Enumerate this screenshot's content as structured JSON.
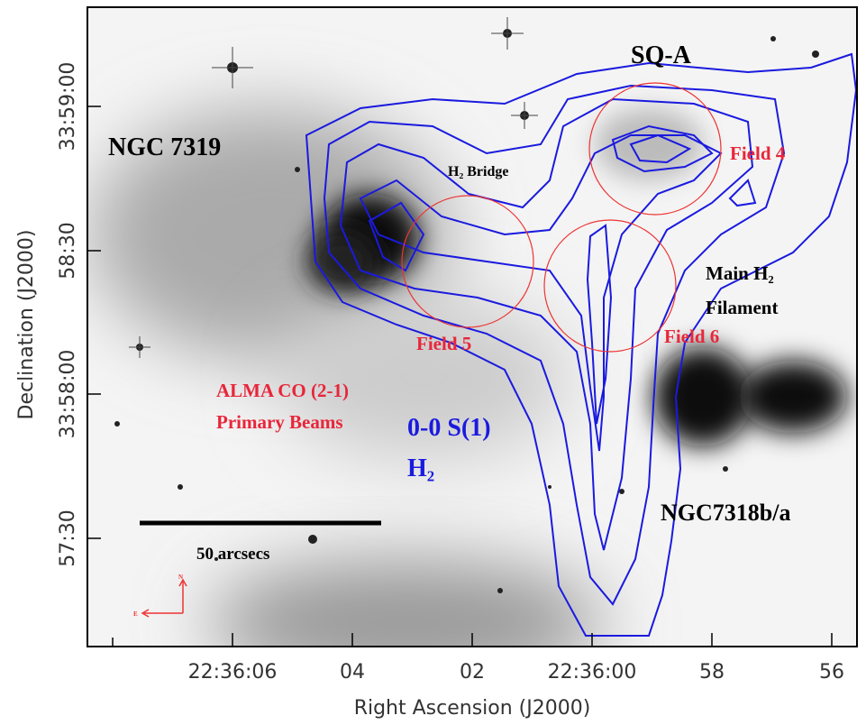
{
  "axes": {
    "x_label": "Right Ascension (J2000)",
    "y_label": "Declination (J2000)",
    "x_ticks": [
      "22:36:06",
      "04",
      "02",
      "22:36:00",
      "58",
      "56"
    ],
    "y_ticks": [
      "33:59:00",
      "58:30",
      "33:58:00",
      "57:30"
    ]
  },
  "annotations": {
    "sq_a": "SQ-A",
    "ngc7319": "NGC 7319",
    "h2_bridge": "H₂ Bridge",
    "field4": "Field 4",
    "field5": "Field 5",
    "field6": "Field 6",
    "main_h2": "Main H₂",
    "filament": "Filament",
    "alma_line1": "ALMA  CO (2-1)",
    "alma_line2": "Primary Beams",
    "h2_line1": "0-0 S(1)",
    "h2_line2": "H₂",
    "ngc7318": "NGC7318b/a",
    "scale_bar": "50 arcsecs",
    "compass_n": "N",
    "compass_e": "E"
  }
}
